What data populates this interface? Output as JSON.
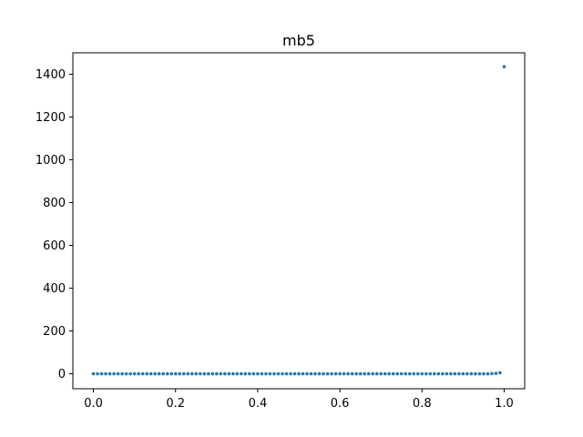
{
  "chart_data": {
    "type": "scatter",
    "title": "mb5",
    "xlabel": "",
    "ylabel": "",
    "xlim": [
      -0.05,
      1.05
    ],
    "ylim": [
      -70,
      1500
    ],
    "x_ticks": [
      "0.0",
      "0.2",
      "0.4",
      "0.6",
      "0.8",
      "1.0"
    ],
    "y_ticks": [
      "0",
      "200",
      "400",
      "600",
      "800",
      "1000",
      "1200",
      "1400"
    ],
    "grid": false,
    "legend": "none",
    "series": [
      {
        "color": "#1f77b4",
        "x": [
          0.0,
          0.01,
          0.02,
          0.03,
          0.04,
          0.05,
          0.06,
          0.07,
          0.08,
          0.09,
          0.1,
          0.11,
          0.12,
          0.13,
          0.14,
          0.15,
          0.16,
          0.17,
          0.18,
          0.19,
          0.2,
          0.21,
          0.22,
          0.23,
          0.24,
          0.25,
          0.26,
          0.27,
          0.28,
          0.29,
          0.3,
          0.31,
          0.32,
          0.33,
          0.34,
          0.35,
          0.36,
          0.37,
          0.38,
          0.39,
          0.4,
          0.41,
          0.42,
          0.43,
          0.44,
          0.45,
          0.46,
          0.47,
          0.48,
          0.49,
          0.5,
          0.51,
          0.52,
          0.53,
          0.54,
          0.55,
          0.56,
          0.57,
          0.58,
          0.59,
          0.6,
          0.61,
          0.62,
          0.63,
          0.64,
          0.65,
          0.66,
          0.67,
          0.68,
          0.69,
          0.7,
          0.71,
          0.72,
          0.73,
          0.74,
          0.75,
          0.76,
          0.77,
          0.78,
          0.79,
          0.8,
          0.81,
          0.82,
          0.83,
          0.84,
          0.85,
          0.86,
          0.87,
          0.88,
          0.89,
          0.9,
          0.91,
          0.92,
          0.93,
          0.94,
          0.95,
          0.96,
          0.97,
          0.98,
          0.99,
          1.0
        ],
        "y": [
          0,
          0,
          0,
          0,
          0,
          0,
          0,
          0,
          0,
          0,
          0,
          0,
          0,
          0,
          0,
          0,
          0,
          0,
          0,
          0,
          0,
          0,
          0,
          0,
          0,
          0,
          0,
          0,
          0,
          0,
          0,
          0,
          0,
          0,
          0,
          0,
          0,
          0,
          0,
          0,
          0,
          0,
          0,
          0,
          0,
          0,
          0,
          0,
          0,
          0,
          0,
          0,
          0,
          0,
          0,
          0,
          0,
          0,
          0,
          0,
          0,
          0,
          0,
          0,
          0,
          0,
          0,
          0,
          0,
          0,
          0,
          0,
          0,
          0,
          0,
          0,
          0,
          0,
          0,
          0,
          0,
          0,
          0,
          0,
          0,
          0,
          0,
          0,
          0,
          0,
          0,
          0,
          0,
          0,
          0,
          0,
          0,
          1,
          2,
          5,
          1435
        ]
      }
    ]
  }
}
